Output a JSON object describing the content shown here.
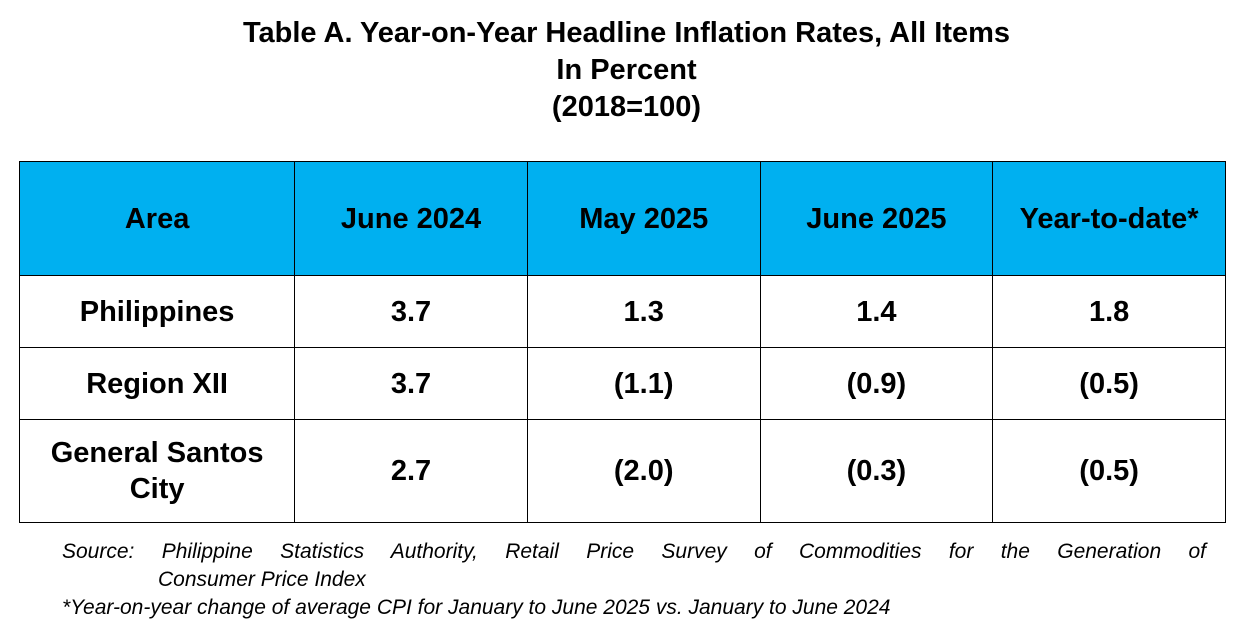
{
  "title": {
    "line1": "Table A. Year-on-Year Headline Inflation Rates, All Items",
    "line2": "In Percent",
    "line3": "(2018=100)"
  },
  "table": {
    "header_color": "#00b0f0",
    "columns": [
      "Area",
      "June 2024",
      "May 2025",
      "June 2025",
      "Year-to-date*"
    ],
    "rows": [
      {
        "area": "Philippines",
        "values": [
          "3.7",
          "1.3",
          "1.4",
          "1.8"
        ]
      },
      {
        "area": "Region XII",
        "values": [
          "3.7",
          "(1.1)",
          "(0.9)",
          "(0.5)"
        ]
      },
      {
        "area": "General Santos City",
        "values": [
          "2.7",
          "(2.0)",
          "(0.3)",
          "(0.5)"
        ]
      }
    ]
  },
  "footnotes": {
    "source_line1": "Source: Philippine Statistics Authority, Retail Price Survey of Commodities for the Generation of",
    "source_line2": "Consumer Price Index",
    "ytd_note": "*Year-on-year change of average CPI for January to June 2025 vs. January to June 2024"
  }
}
